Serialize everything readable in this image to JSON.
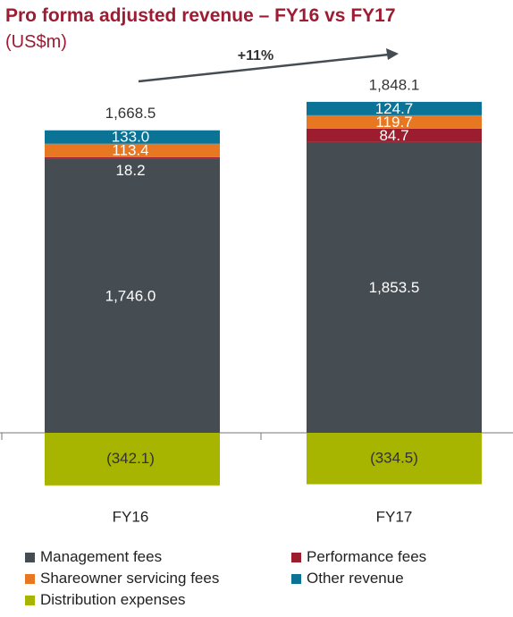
{
  "title": "Pro forma adjusted revenue – FY16 vs FY17",
  "subtitle": "(US$m)",
  "chart_data": {
    "type": "bar",
    "stacked": true,
    "categories": [
      "FY16",
      "FY17"
    ],
    "totals": [
      "1,668.5",
      "1,848.1"
    ],
    "growth_label": "+11%",
    "series": [
      {
        "name": "Management fees",
        "color": "#454c52",
        "values": [
          1746.0,
          1853.5
        ],
        "labels": [
          "1,746.0",
          "1,853.5"
        ]
      },
      {
        "name": "Performance fees",
        "color": "#9b1d2e",
        "values": [
          18.2,
          84.7
        ],
        "labels": [
          "18.2",
          "84.7"
        ]
      },
      {
        "name": "Shareowner servicing fees",
        "color": "#e87722",
        "values": [
          113.4,
          119.7
        ],
        "labels": [
          "113.4",
          "119.7"
        ]
      },
      {
        "name": "Other revenue",
        "color": "#0a7396",
        "values": [
          133.0,
          124.7
        ],
        "labels": [
          "133.0",
          "124.7"
        ]
      },
      {
        "name": "Distribution expenses",
        "color": "#a7b400",
        "values": [
          -342.1,
          -334.5
        ],
        "labels": [
          "(342.1)",
          "(334.5)"
        ]
      }
    ]
  },
  "legend": {
    "items": [
      {
        "label": "Management fees",
        "color": "#454c52"
      },
      {
        "label": "Performance fees",
        "color": "#9b1d2e"
      },
      {
        "label": "Shareowner servicing fees",
        "color": "#e87722"
      },
      {
        "label": "Other revenue",
        "color": "#0a7396"
      },
      {
        "label": "Distribution expenses",
        "color": "#a7b400"
      }
    ]
  }
}
